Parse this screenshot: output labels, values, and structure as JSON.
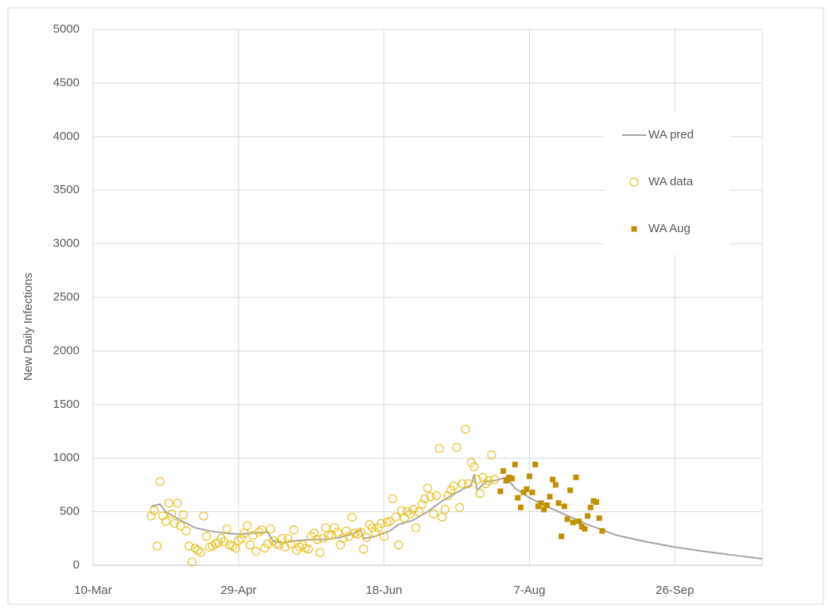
{
  "chart_data": {
    "type": "line",
    "y_label": "New Daily Infections",
    "xlim": [
      0,
      230
    ],
    "xticks": [
      {
        "value": 0,
        "label": "10-Mar"
      },
      {
        "value": 50,
        "label": "29-Apr"
      },
      {
        "value": 100,
        "label": "18-Jun"
      },
      {
        "value": 150,
        "label": "7-Aug"
      },
      {
        "value": 200,
        "label": "26-Sep"
      }
    ],
    "ylim": [
      0,
      5000
    ],
    "yticks": [
      0,
      500,
      1000,
      1500,
      2000,
      2500,
      3000,
      3500,
      4000,
      4500,
      5000
    ],
    "grid": true,
    "legend": "right",
    "series": [
      {
        "name": "WA pred",
        "type": "line",
        "color": "#a6a6a6",
        "x": [
          20,
          23,
          25,
          30,
          35,
          40,
          45,
          50,
          55,
          60,
          62,
          65,
          70,
          75,
          80,
          85,
          90,
          92,
          93,
          97,
          100,
          102,
          105,
          110,
          115,
          120,
          125,
          130,
          131,
          132,
          135,
          138,
          142,
          145,
          150,
          155,
          160,
          165,
          170,
          175,
          180,
          190,
          200,
          210,
          220,
          230
        ],
        "values": [
          550,
          570,
          500,
          420,
          350,
          320,
          300,
          290,
          300,
          310,
          220,
          210,
          230,
          240,
          240,
          260,
          300,
          330,
          250,
          270,
          300,
          320,
          380,
          420,
          500,
          600,
          680,
          750,
          850,
          700,
          780,
          790,
          820,
          720,
          630,
          560,
          500,
          440,
          380,
          330,
          280,
          220,
          170,
          130,
          95,
          60
        ]
      },
      {
        "name": "WA data",
        "type": "scatter",
        "marker": "circle",
        "color": "#e6c229",
        "x": [
          20,
          21,
          22,
          23,
          24,
          25,
          26,
          27,
          28,
          29,
          30,
          31,
          32,
          33,
          34,
          35,
          36,
          37,
          38,
          39,
          40,
          41,
          42,
          43,
          44,
          45,
          46,
          47,
          48,
          49,
          50,
          51,
          52,
          53,
          54,
          55,
          56,
          57,
          58,
          59,
          60,
          61,
          62,
          63,
          64,
          65,
          66,
          67,
          68,
          69,
          70,
          71,
          72,
          73,
          74,
          75,
          76,
          77,
          78,
          79,
          80,
          81,
          82,
          83,
          84,
          85,
          86,
          87,
          88,
          89,
          90,
          91,
          92,
          93,
          94,
          95,
          96,
          97,
          98,
          99,
          100,
          101,
          102,
          103,
          104,
          105,
          106,
          107,
          108,
          109,
          110,
          111,
          112,
          113,
          114,
          115,
          116,
          117,
          118,
          119,
          120,
          121,
          122,
          123,
          124,
          125,
          126,
          127,
          128,
          129,
          130,
          131,
          132,
          133,
          134,
          135,
          136,
          137,
          138
        ],
        "values": [
          460,
          510,
          180,
          780,
          460,
          410,
          580,
          480,
          390,
          580,
          370,
          470,
          320,
          180,
          30,
          160,
          140,
          120,
          460,
          270,
          170,
          180,
          200,
          210,
          250,
          220,
          340,
          190,
          180,
          160,
          230,
          250,
          300,
          370,
          190,
          280,
          130,
          310,
          330,
          160,
          200,
          340,
          230,
          200,
          190,
          250,
          170,
          250,
          200,
          330,
          140,
          170,
          190,
          160,
          150,
          270,
          300,
          240,
          120,
          250,
          350,
          280,
          280,
          350,
          310,
          190,
          250,
          320,
          270,
          450,
          300,
          290,
          310,
          150,
          260,
          380,
          350,
          310,
          350,
          390,
          270,
          400,
          410,
          620,
          450,
          190,
          510,
          440,
          500,
          480,
          520,
          350,
          500,
          570,
          620,
          720,
          640,
          480,
          650,
          1090,
          450,
          520,
          650,
          700,
          740,
          1100,
          540,
          760,
          1270,
          760,
          960,
          920,
          800,
          670,
          820,
          760,
          790,
          1030,
          800
        ]
      },
      {
        "name": "WA Aug",
        "type": "scatter",
        "marker": "square",
        "color": "#bf9000",
        "x": [
          140,
          141,
          142,
          143,
          144,
          145,
          146,
          147,
          148,
          149,
          150,
          151,
          152,
          153,
          154,
          155,
          156,
          157,
          158,
          159,
          160,
          161,
          162,
          163,
          164,
          165,
          166,
          167,
          168,
          169,
          170,
          171,
          172,
          173,
          174,
          175
        ],
        "values": [
          690,
          880,
          790,
          820,
          810,
          940,
          630,
          540,
          680,
          710,
          830,
          680,
          940,
          550,
          580,
          520,
          560,
          640,
          800,
          750,
          580,
          270,
          550,
          430,
          700,
          400,
          820,
          410,
          360,
          340,
          460,
          540,
          600,
          590,
          440,
          320
        ]
      }
    ]
  }
}
